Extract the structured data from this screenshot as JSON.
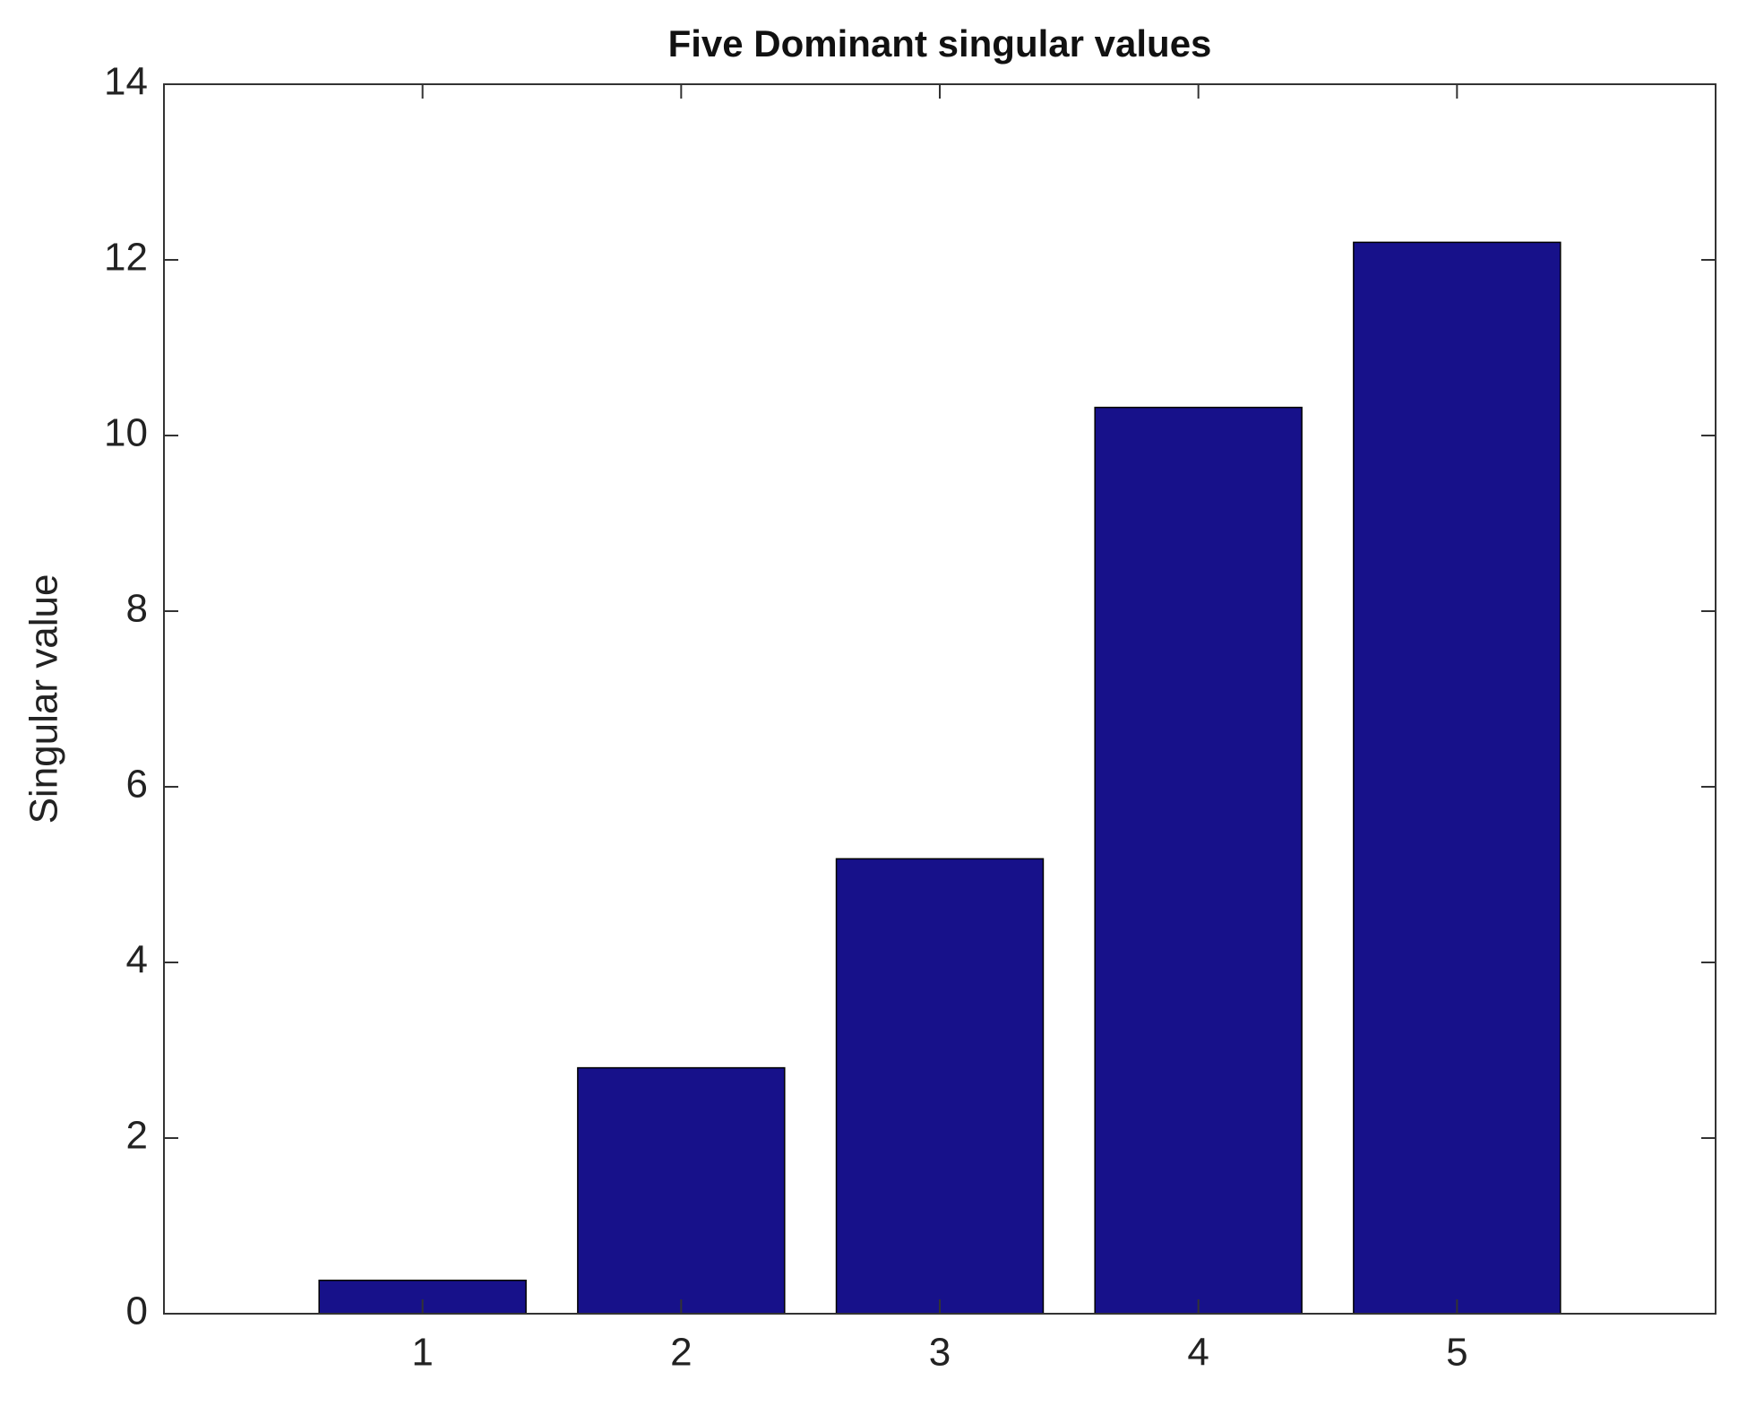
{
  "chart_data": {
    "type": "bar",
    "title": "Five Dominant singular values",
    "ylabel": "Singular value",
    "x": [
      1,
      2,
      3,
      4,
      5
    ],
    "values": [
      0.38,
      2.8,
      5.18,
      10.32,
      12.2
    ],
    "color": "#17118a",
    "xlim": [
      0,
      6
    ],
    "xticks": [
      1,
      2,
      3,
      4,
      5
    ],
    "ylim": [
      0,
      14
    ],
    "yticks": [
      0,
      2,
      4,
      6,
      8,
      10,
      12,
      14
    ],
    "grid": false
  }
}
